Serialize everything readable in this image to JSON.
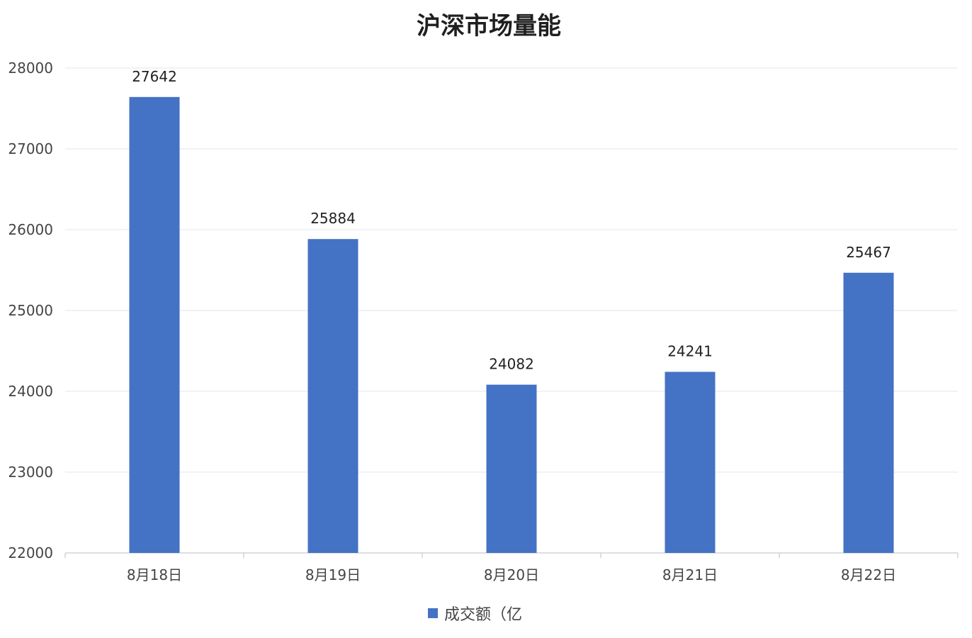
{
  "chart_data": {
    "type": "bar",
    "title": "沪深市场量能",
    "categories": [
      "8月18日",
      "8月19日",
      "8月20日",
      "8月21日",
      "8月22日"
    ],
    "series": [
      {
        "name": "成交额（亿",
        "values": [
          27642,
          25884,
          24082,
          24241,
          25467
        ]
      }
    ],
    "data_labels": [
      "27642",
      "25884",
      "24082",
      "24241",
      "25467"
    ],
    "ylim": [
      22000,
      28000
    ],
    "yticks": [
      22000,
      23000,
      24000,
      25000,
      26000,
      27000,
      28000
    ],
    "ytick_labels": [
      "22000",
      "23000",
      "24000",
      "25000",
      "26000",
      "27000",
      "28000"
    ],
    "grid": true,
    "legend_position": "bottom-center",
    "colors": {
      "bar": "#4472c4",
      "grid": "#e3e6ec",
      "axis": "#cfd3da"
    }
  }
}
